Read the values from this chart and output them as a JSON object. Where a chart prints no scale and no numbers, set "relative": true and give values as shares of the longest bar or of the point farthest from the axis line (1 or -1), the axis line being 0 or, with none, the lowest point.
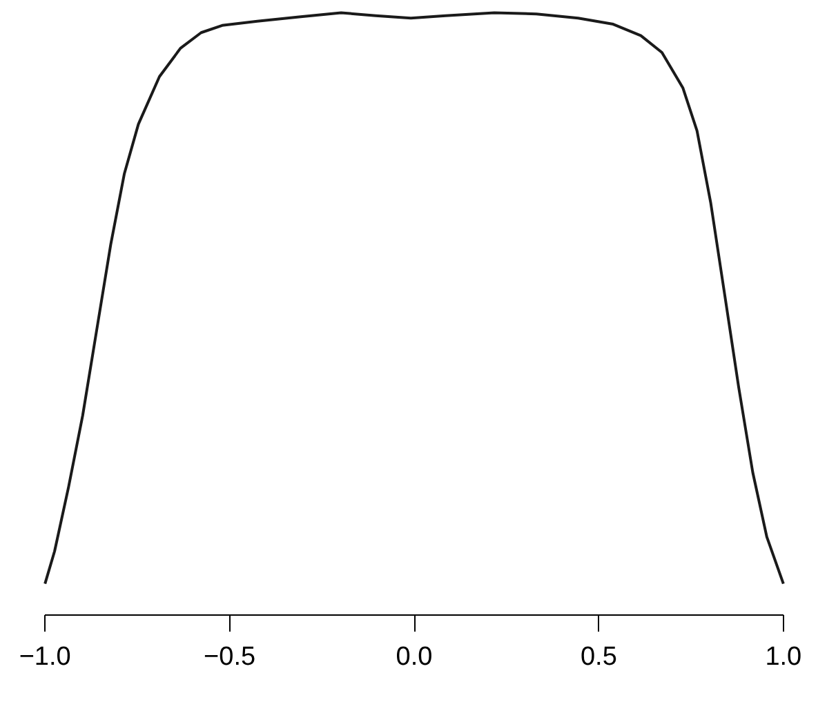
{
  "chart_data": {
    "type": "line",
    "relative": true,
    "color": "#1a1a1a",
    "x": [
      -1.0,
      -0.974,
      -0.936,
      -0.898,
      -0.86,
      -0.822,
      -0.785,
      -0.747,
      -0.69,
      -0.633,
      -0.577,
      -0.52,
      -0.425,
      -0.312,
      -0.198,
      -0.104,
      -0.009,
      0.085,
      0.217,
      0.331,
      0.444,
      0.539,
      0.614,
      0.671,
      0.728,
      0.766,
      0.803,
      0.841,
      0.879,
      0.917,
      0.955,
      1.0
    ],
    "values": [
      0.052,
      0.106,
      0.213,
      0.331,
      0.473,
      0.615,
      0.733,
      0.815,
      0.894,
      0.941,
      0.967,
      0.979,
      0.986,
      0.993,
      1.0,
      0.995,
      0.991,
      0.995,
      1.0,
      0.998,
      0.991,
      0.981,
      0.962,
      0.934,
      0.875,
      0.804,
      0.685,
      0.532,
      0.378,
      0.237,
      0.13,
      0.052
    ],
    "xlim": [
      -1.0,
      1.0
    ],
    "xticks": [
      {
        "value": -1.0,
        "label": "−1.0"
      },
      {
        "value": -0.5,
        "label": "−0.5"
      },
      {
        "value": 0.0,
        "label": "0.0"
      },
      {
        "value": 0.5,
        "label": "0.5"
      },
      {
        "value": 1.0,
        "label": "1.0"
      }
    ],
    "tick_labels": "x",
    "grid": false,
    "line_style": "solid",
    "marker": "none"
  }
}
